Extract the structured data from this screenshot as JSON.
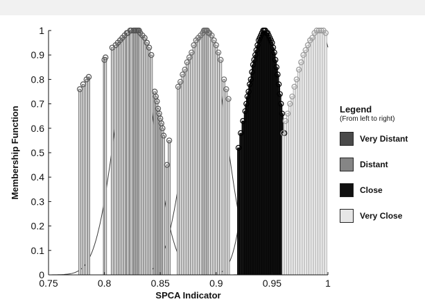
{
  "chart_data": {
    "type": "stem",
    "xlabel": "SPCA Indicator",
    "ylabel": "Membership Function",
    "xlim": [
      0.75,
      1.0
    ],
    "ylim": [
      0,
      1
    ],
    "xticks": [
      "0.75",
      "0.8",
      "0.85",
      "0.9",
      "0.95",
      "1"
    ],
    "yticks": [
      "0",
      "0.1",
      "0.2",
      "0.3",
      "0.4",
      "0.5",
      "0.6",
      "0.7",
      "0.8",
      "0.9",
      "1"
    ],
    "grid": false,
    "legend": {
      "title": "Legend",
      "subtitle": "(From left to right)",
      "placement": "right-outside"
    },
    "series": [
      {
        "name": "Very Distant",
        "color": "#cfcfcf",
        "edge": "#555555",
        "curve": {
          "mu": 0.827,
          "sigma": 0.0175
        },
        "x": [
          0.778,
          0.781,
          0.784,
          0.786,
          0.8,
          0.801,
          0.807,
          0.81,
          0.812,
          0.814,
          0.816,
          0.818,
          0.82,
          0.821,
          0.823,
          0.824,
          0.826,
          0.827,
          0.828,
          0.829,
          0.83,
          0.831,
          0.832,
          0.834,
          0.836,
          0.838,
          0.84,
          0.842,
          0.845,
          0.846,
          0.847,
          0.848,
          0.849,
          0.85,
          0.851,
          0.852,
          0.853,
          0.856,
          0.858
        ],
        "y": [
          0.76,
          0.78,
          0.8,
          0.81,
          0.88,
          0.89,
          0.93,
          0.94,
          0.95,
          0.96,
          0.97,
          0.98,
          0.99,
          0.99,
          1.0,
          1.0,
          1.0,
          1.0,
          1.0,
          1.0,
          1.0,
          1.0,
          0.99,
          0.98,
          0.97,
          0.95,
          0.93,
          0.9,
          0.75,
          0.73,
          0.71,
          0.68,
          0.66,
          0.64,
          0.62,
          0.6,
          0.57,
          0.45,
          0.55
        ]
      },
      {
        "name": "Distant",
        "color": "#d6d6d6",
        "edge": "#6a6a6a",
        "curve": {
          "mu": 0.891,
          "sigma": 0.0175
        },
        "x": [
          0.866,
          0.868,
          0.87,
          0.872,
          0.874,
          0.876,
          0.878,
          0.88,
          0.882,
          0.884,
          0.886,
          0.888,
          0.889,
          0.89,
          0.891,
          0.892,
          0.893,
          0.894,
          0.896,
          0.898,
          0.9,
          0.902,
          0.904,
          0.907,
          0.909,
          0.911
        ],
        "y": [
          0.77,
          0.79,
          0.82,
          0.84,
          0.87,
          0.89,
          0.91,
          0.94,
          0.96,
          0.97,
          0.98,
          0.99,
          1.0,
          1.0,
          1.0,
          1.0,
          0.99,
          0.99,
          0.98,
          0.96,
          0.94,
          0.91,
          0.88,
          0.8,
          0.76,
          0.72
        ]
      },
      {
        "name": "Close",
        "color": "#141414",
        "edge": "#000000",
        "curve": {
          "mu": 0.943,
          "sigma": 0.0128
        },
        "x": [
          0.92,
          0.922,
          0.924,
          0.926,
          0.927,
          0.928,
          0.929,
          0.93,
          0.931,
          0.932,
          0.933,
          0.934,
          0.935,
          0.936,
          0.937,
          0.938,
          0.939,
          0.94,
          0.941,
          0.942,
          0.943,
          0.944,
          0.945,
          0.946,
          0.947,
          0.948,
          0.949,
          0.95,
          0.951,
          0.952,
          0.953,
          0.954,
          0.955,
          0.956,
          0.957,
          0.958,
          0.959,
          0.961
        ],
        "y": [
          0.52,
          0.58,
          0.63,
          0.67,
          0.7,
          0.73,
          0.75,
          0.78,
          0.8,
          0.83,
          0.86,
          0.88,
          0.9,
          0.92,
          0.94,
          0.96,
          0.97,
          0.98,
          0.99,
          1.0,
          1.0,
          1.0,
          0.99,
          0.99,
          0.98,
          0.97,
          0.96,
          0.95,
          0.93,
          0.91,
          0.88,
          0.85,
          0.82,
          0.78,
          0.74,
          0.7,
          0.66,
          0.58
        ]
      },
      {
        "name": "Very Close",
        "color": "#ececec",
        "edge": "#9a9a9a",
        "curve": {
          "mu": 0.993,
          "sigma": 0.0185
        },
        "x": [
          0.96,
          0.962,
          0.964,
          0.966,
          0.968,
          0.97,
          0.972,
          0.974,
          0.976,
          0.978,
          0.98,
          0.982,
          0.984,
          0.986,
          0.988,
          0.99,
          0.992,
          0.994,
          0.996,
          0.998
        ],
        "y": [
          0.58,
          0.63,
          0.66,
          0.7,
          0.73,
          0.77,
          0.8,
          0.84,
          0.87,
          0.9,
          0.92,
          0.94,
          0.96,
          0.97,
          0.99,
          1.0,
          1.0,
          1.0,
          1.0,
          0.99
        ]
      }
    ]
  }
}
